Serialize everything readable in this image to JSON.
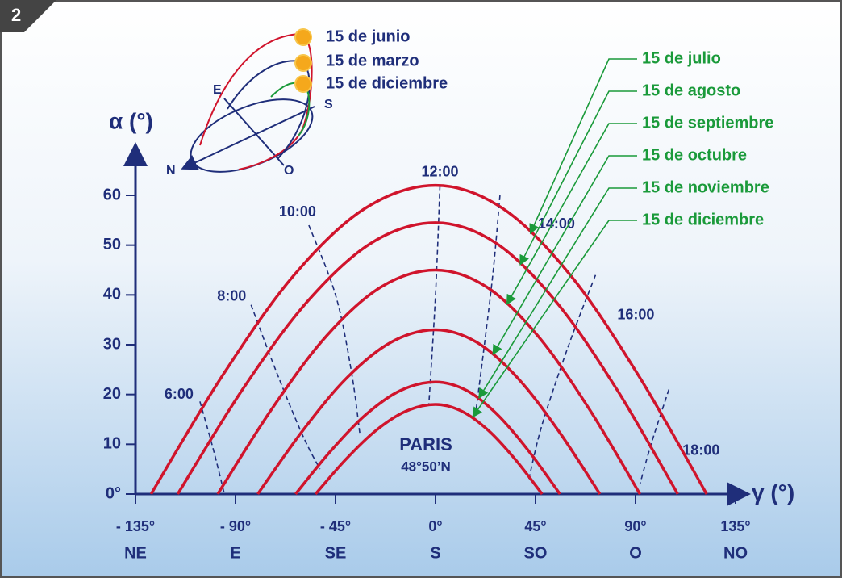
{
  "chart_data": {
    "type": "line",
    "badge": "2",
    "ylabel": "α (°)",
    "xlabel": "γ (°)",
    "place": "PARIS",
    "latitude": "48°50’N",
    "xlim": [
      -135,
      135
    ],
    "ylim": [
      0,
      60
    ],
    "yticks": [
      {
        "value": 0,
        "label": "0°"
      },
      10,
      20,
      30,
      40,
      50,
      60
    ],
    "xticks": [
      {
        "value": -135,
        "label": "- 135°"
      },
      {
        "value": -90,
        "label": "- 90°"
      },
      {
        "value": -45,
        "label": "- 45°"
      },
      {
        "value": 0,
        "label": "0°"
      },
      {
        "value": 45,
        "label": "45°"
      },
      {
        "value": 90,
        "label": "90°"
      },
      {
        "value": 135,
        "label": "135°"
      }
    ],
    "x_directions": [
      "NE",
      "E",
      "SE",
      "S",
      "SO",
      "O",
      "NO"
    ],
    "series": [
      {
        "name": "15 de julio",
        "color": "#d0142c",
        "x": [
          -128,
          -96,
          -64,
          -32,
          0,
          30.5,
          61,
          91.5,
          122
        ],
        "values": [
          0,
          23.7,
          43.8,
          57.3,
          62,
          57.3,
          43.8,
          23.7,
          0
        ]
      },
      {
        "name": "15 de agosto",
        "color": "#d0142c",
        "x": [
          -116,
          -87,
          -58,
          -29,
          0,
          27.25,
          54.5,
          81.75,
          109
        ],
        "values": [
          0,
          20.9,
          38.5,
          50.4,
          54.5,
          50.4,
          38.5,
          20.9,
          0
        ]
      },
      {
        "name": "15 de septiembre",
        "color": "#d0142c",
        "x": [
          -98,
          -73.5,
          -49,
          -24.5,
          0,
          23,
          46,
          69,
          92
        ],
        "values": [
          0,
          17.2,
          31.8,
          41.6,
          45,
          41.6,
          31.8,
          17.2,
          0
        ]
      },
      {
        "name": "15 de octubre",
        "color": "#d0142c",
        "x": [
          -80,
          -60,
          -40,
          -20,
          0,
          18.5,
          37,
          55.5,
          74
        ],
        "values": [
          0,
          12.6,
          23.3,
          30.5,
          33,
          30.5,
          23.3,
          12.6,
          0
        ]
      },
      {
        "name": "15 de noviembre",
        "color": "#d0142c",
        "x": [
          -63,
          -47.25,
          -31.5,
          -15.75,
          0,
          14,
          28,
          42,
          56
        ],
        "values": [
          0,
          8.6,
          15.9,
          20.8,
          22.5,
          20.8,
          15.9,
          8.6,
          0
        ]
      },
      {
        "name": "15 de diciembre",
        "color": "#d0142c",
        "x": [
          -54,
          -40.5,
          -27,
          -13.5,
          0,
          12,
          24,
          36,
          48
        ],
        "values": [
          0,
          6.9,
          12.7,
          16.6,
          18,
          16.6,
          12.7,
          6.9,
          0
        ]
      }
    ],
    "legend_color": "#1a9a3a",
    "hour_lines": [
      {
        "name": "6:00",
        "x": [
          -106,
          -100,
          -95
        ],
        "values": [
          18.6,
          9,
          0
        ]
      },
      {
        "name": "8:00",
        "x": [
          -83,
          -72,
          -60,
          -52
        ],
        "values": [
          38,
          25,
          12,
          5
        ]
      },
      {
        "name": "10:00",
        "x": [
          -57,
          -45,
          -38,
          -34
        ],
        "values": [
          54,
          40,
          25,
          12
        ]
      },
      {
        "name": "12:00",
        "x": [
          2,
          0,
          -3
        ],
        "values": [
          62,
          40,
          18
        ]
      },
      {
        "name": "14:00",
        "x": [
          29,
          26,
          22,
          18
        ],
        "values": [
          60,
          45,
          30,
          16
        ]
      },
      {
        "name": "16:00",
        "x": [
          72,
          60,
          48,
          42
        ],
        "values": [
          44,
          30,
          14,
          3
        ]
      },
      {
        "name": "18:00",
        "x": [
          105,
          97,
          92
        ],
        "values": [
          21,
          10,
          2
        ]
      }
    ],
    "inset": {
      "dates": [
        "15 de junio",
        "15 de marzo",
        "15 de diciembre"
      ],
      "directions": [
        "E",
        "S",
        "N",
        "O"
      ]
    }
  }
}
